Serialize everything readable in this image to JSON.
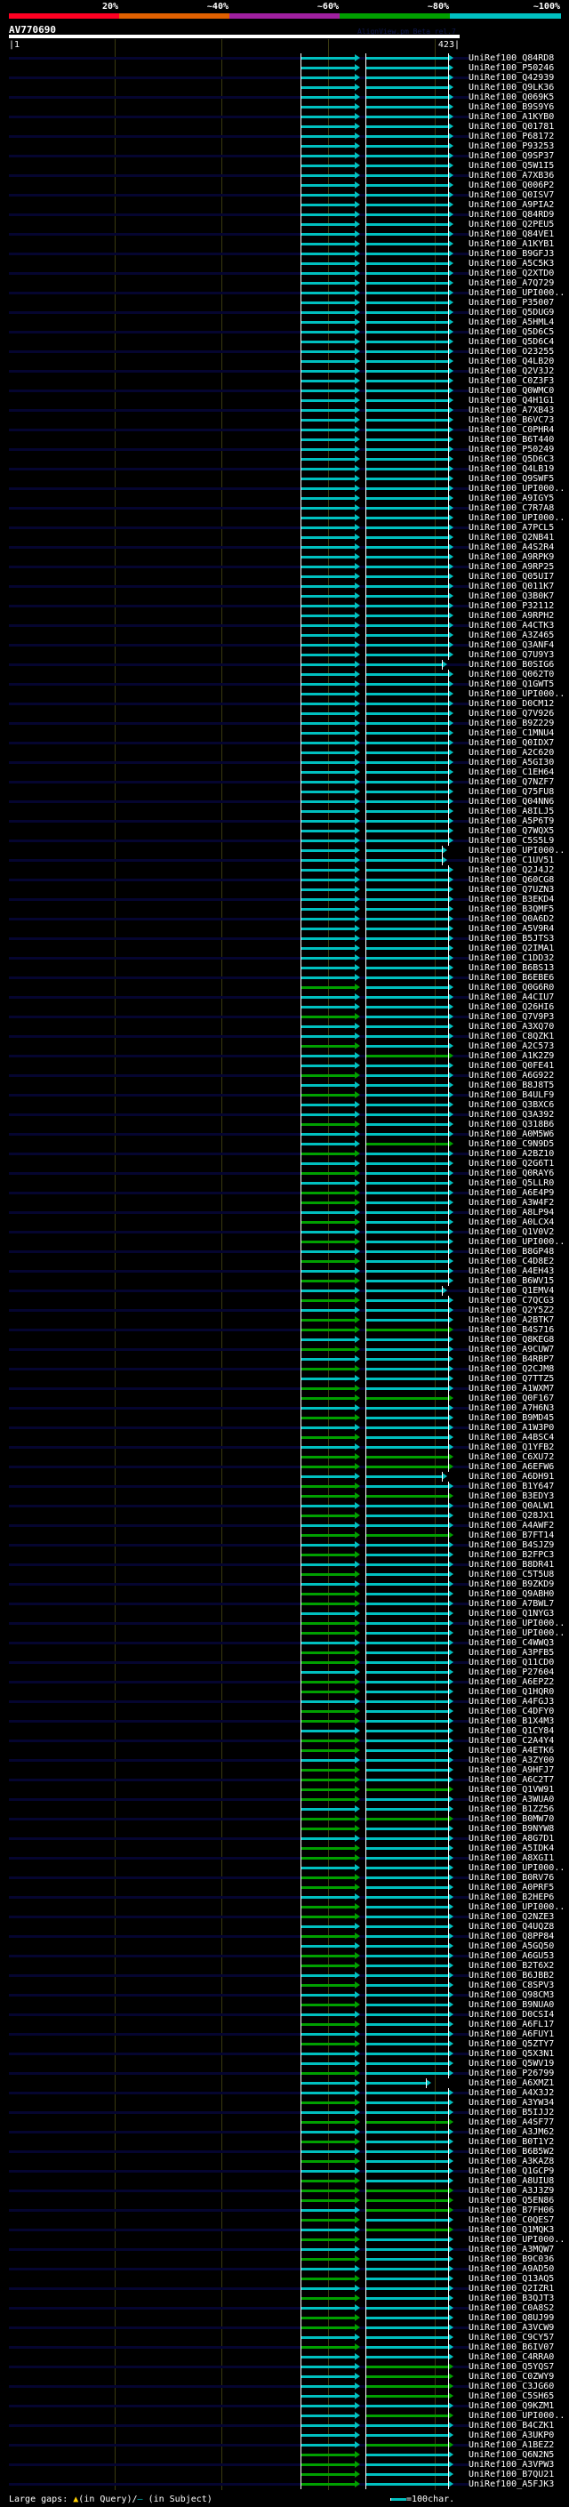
{
  "scale": {
    "labels": [
      "20%",
      "~40%",
      "~60%",
      "~80%",
      "~100%"
    ],
    "colors": [
      "#ff0022",
      "#e06000",
      "#a020a0",
      "#00a000",
      "#00c0c0"
    ]
  },
  "header": {
    "query_id": "AV770690",
    "credit": "AlignView.pm Beta rel.7",
    "start": "|1",
    "end": "423|"
  },
  "colors": {
    "cyan": "#00c0c0",
    "green": "#00a000",
    "query_line": "#050530"
  },
  "rows": [
    {
      "id": "UniRef100_Q84RD8",
      "s": "cc"
    },
    {
      "id": "UniRef100_P50246",
      "s": "cc"
    },
    {
      "id": "UniRef100_Q42939",
      "s": "cc"
    },
    {
      "id": "UniRef100_Q9LK36",
      "s": "cc"
    },
    {
      "id": "UniRef100_Q069K5",
      "s": "cc"
    },
    {
      "id": "UniRef100_B9S9Y6",
      "s": "cc"
    },
    {
      "id": "UniRef100_A1KYB0",
      "s": "cc"
    },
    {
      "id": "UniRef100_Q01781",
      "s": "cc"
    },
    {
      "id": "UniRef100_P68172",
      "s": "cc"
    },
    {
      "id": "UniRef100_P93253",
      "s": "cc"
    },
    {
      "id": "UniRef100_Q9SP37",
      "s": "cc"
    },
    {
      "id": "UniRef100_Q5W1I5",
      "s": "cc"
    },
    {
      "id": "UniRef100_A7XB36",
      "s": "cc"
    },
    {
      "id": "UniRef100_Q006P2",
      "s": "cc"
    },
    {
      "id": "UniRef100_Q0ISV7",
      "s": "cc"
    },
    {
      "id": "UniRef100_A9PIA2",
      "s": "cc"
    },
    {
      "id": "UniRef100_Q84RD9",
      "s": "cc"
    },
    {
      "id": "UniRef100_Q2PEU5",
      "s": "cc"
    },
    {
      "id": "UniRef100_Q84VE1",
      "s": "cc"
    },
    {
      "id": "UniRef100_A1KYB1",
      "s": "cc"
    },
    {
      "id": "UniRef100_B9GFJ3",
      "s": "cc"
    },
    {
      "id": "UniRef100_A5C5K3",
      "s": "cc"
    },
    {
      "id": "UniRef100_Q2XTD0",
      "s": "cc"
    },
    {
      "id": "UniRef100_A7Q729",
      "s": "cc"
    },
    {
      "id": "UniRef100_UPI000..",
      "s": "cc"
    },
    {
      "id": "UniRef100_P35007",
      "s": "cc"
    },
    {
      "id": "UniRef100_Q5DUG9",
      "s": "cc"
    },
    {
      "id": "UniRef100_A5HML4",
      "s": "cc"
    },
    {
      "id": "UniRef100_Q5D6C5",
      "s": "cc"
    },
    {
      "id": "UniRef100_Q5D6C4",
      "s": "cc"
    },
    {
      "id": "UniRef100_O23255",
      "s": "cc"
    },
    {
      "id": "UniRef100_Q4LB20",
      "s": "cc"
    },
    {
      "id": "UniRef100_Q2V3J2",
      "s": "cc"
    },
    {
      "id": "UniRef100_C0Z3F3",
      "s": "cc"
    },
    {
      "id": "UniRef100_Q0WMC0",
      "s": "cc"
    },
    {
      "id": "UniRef100_Q4H1G1",
      "s": "cc"
    },
    {
      "id": "UniRef100_A7XB43",
      "s": "cc"
    },
    {
      "id": "UniRef100_B6VC73",
      "s": "cc"
    },
    {
      "id": "UniRef100_C0PHR4",
      "s": "cc"
    },
    {
      "id": "UniRef100_B6T440",
      "s": "cc"
    },
    {
      "id": "UniRef100_P50249",
      "s": "cc"
    },
    {
      "id": "UniRef100_Q5D6C3",
      "s": "cc"
    },
    {
      "id": "UniRef100_Q4LB19",
      "s": "cc"
    },
    {
      "id": "UniRef100_Q9SWF5",
      "s": "cc"
    },
    {
      "id": "UniRef100_UPI000..",
      "s": "cc"
    },
    {
      "id": "UniRef100_A9IGY5",
      "s": "cc"
    },
    {
      "id": "UniRef100_C7R7A8",
      "s": "cc"
    },
    {
      "id": "UniRef100_UPI000..",
      "s": "cc"
    },
    {
      "id": "UniRef100_A7PCL5",
      "s": "cc"
    },
    {
      "id": "UniRef100_Q2NB41",
      "s": "cc"
    },
    {
      "id": "UniRef100_A4S2R4",
      "s": "cc"
    },
    {
      "id": "UniRef100_A9RPK9",
      "s": "cc"
    },
    {
      "id": "UniRef100_A9RP25",
      "s": "cc"
    },
    {
      "id": "UniRef100_Q05UI7",
      "s": "cc"
    },
    {
      "id": "UniRef100_Q011K7",
      "s": "cc"
    },
    {
      "id": "UniRef100_Q3B0K7",
      "s": "cc"
    },
    {
      "id": "UniRef100_P32112",
      "s": "cc"
    },
    {
      "id": "UniRef100_A9RPH2",
      "s": "cc"
    },
    {
      "id": "UniRef100_A4CTK3",
      "s": "cc"
    },
    {
      "id": "UniRef100_A3Z465",
      "s": "cc"
    },
    {
      "id": "UniRef100_Q3ANF4",
      "s": "cc"
    },
    {
      "id": "UniRef100_Q7U9Y3",
      "s": "cc"
    },
    {
      "id": "UniRef100_B0SIG6",
      "s": "cc",
      "short": 1
    },
    {
      "id": "UniRef100_Q062T0",
      "s": "cc"
    },
    {
      "id": "UniRef100_Q1GWT5",
      "s": "cc"
    },
    {
      "id": "UniRef100_UPI000..",
      "s": "cc"
    },
    {
      "id": "UniRef100_D0CM12",
      "s": "cc"
    },
    {
      "id": "UniRef100_Q7V926",
      "s": "cc"
    },
    {
      "id": "UniRef100_B9Z229",
      "s": "cc"
    },
    {
      "id": "UniRef100_C1MNU4",
      "s": "cc"
    },
    {
      "id": "UniRef100_Q0IDX7",
      "s": "cc"
    },
    {
      "id": "UniRef100_A2C620",
      "s": "cc"
    },
    {
      "id": "UniRef100_A5GI30",
      "s": "cc"
    },
    {
      "id": "UniRef100_C1EH64",
      "s": "cc"
    },
    {
      "id": "UniRef100_Q7NZF7",
      "s": "cc"
    },
    {
      "id": "UniRef100_Q75FU8",
      "s": "cc"
    },
    {
      "id": "UniRef100_Q04NN6",
      "s": "cc"
    },
    {
      "id": "UniRef100_A8ILJ5",
      "s": "cc"
    },
    {
      "id": "UniRef100_A5P6T9",
      "s": "cc"
    },
    {
      "id": "UniRef100_Q7WQX5",
      "s": "cc"
    },
    {
      "id": "UniRef100_C5S5L9",
      "s": "cc"
    },
    {
      "id": "UniRef100_UPI000..",
      "s": "cc",
      "short": 1
    },
    {
      "id": "UniRef100_C1UV51",
      "s": "cc",
      "short": 1
    },
    {
      "id": "UniRef100_Q2J4J2",
      "s": "cc"
    },
    {
      "id": "UniRef100_Q60CG8",
      "s": "cc"
    },
    {
      "id": "UniRef100_Q7UZN3",
      "s": "cc"
    },
    {
      "id": "UniRef100_B3EKD4",
      "s": "cc"
    },
    {
      "id": "UniRef100_B3QMF5",
      "s": "cc"
    },
    {
      "id": "UniRef100_Q0A6D2",
      "s": "cc"
    },
    {
      "id": "UniRef100_A5V9R4",
      "s": "cc"
    },
    {
      "id": "UniRef100_B5JTS3",
      "s": "cc"
    },
    {
      "id": "UniRef100_Q2IMA1",
      "s": "cc"
    },
    {
      "id": "UniRef100_C1DD32",
      "s": "cc"
    },
    {
      "id": "UniRef100_B6BS13",
      "s": "cc"
    },
    {
      "id": "UniRef100_B6EBE6",
      "s": "cc"
    },
    {
      "id": "UniRef100_Q0G6R0",
      "s": "gc"
    },
    {
      "id": "UniRef100_A4CIU7",
      "s": "cc"
    },
    {
      "id": "UniRef100_Q26HI6",
      "s": "cc"
    },
    {
      "id": "UniRef100_Q7V9P3",
      "s": "gc"
    },
    {
      "id": "UniRef100_A3XQ70",
      "s": "cc"
    },
    {
      "id": "UniRef100_C8QZK1",
      "s": "cc"
    },
    {
      "id": "UniRef100_A2C573",
      "s": "gc"
    },
    {
      "id": "UniRef100_A1K2Z9",
      "s": "cg"
    },
    {
      "id": "UniRef100_Q0FE41",
      "s": "cc"
    },
    {
      "id": "UniRef100_A6G922",
      "s": "gc"
    },
    {
      "id": "UniRef100_B8J8T5",
      "s": "cc"
    },
    {
      "id": "UniRef100_B4ULF9",
      "s": "gc"
    },
    {
      "id": "UniRef100_Q3BXC6",
      "s": "cc"
    },
    {
      "id": "UniRef100_Q3A392",
      "s": "cc"
    },
    {
      "id": "UniRef100_Q318B6",
      "s": "gc"
    },
    {
      "id": "UniRef100_A0M5W6",
      "s": "cc"
    },
    {
      "id": "UniRef100_C9N9D5",
      "s": "cg"
    },
    {
      "id": "UniRef100_A2BZ10",
      "s": "gc"
    },
    {
      "id": "UniRef100_Q2G6T1",
      "s": "cc"
    },
    {
      "id": "UniRef100_Q0RAY6",
      "s": "gc"
    },
    {
      "id": "UniRef100_Q5LLR0",
      "s": "cc"
    },
    {
      "id": "UniRef100_A6E4P9",
      "s": "gc"
    },
    {
      "id": "UniRef100_A3W4F2",
      "s": "gc"
    },
    {
      "id": "UniRef100_A8LP94",
      "s": "cc"
    },
    {
      "id": "UniRef100_A0LCX4",
      "s": "gc"
    },
    {
      "id": "UniRef100_Q1V0V2",
      "s": "cc"
    },
    {
      "id": "UniRef100_UPI000..",
      "s": "gc"
    },
    {
      "id": "UniRef100_B8GP48",
      "s": "cc"
    },
    {
      "id": "UniRef100_C4D8E2",
      "s": "gc"
    },
    {
      "id": "UniRef100_A4EH43",
      "s": "cc"
    },
    {
      "id": "UniRef100_B6WV15",
      "s": "gc"
    },
    {
      "id": "UniRef100_Q1EMV4",
      "s": "cc",
      "short": 1
    },
    {
      "id": "UniRef100_C7QCG3",
      "s": "gc"
    },
    {
      "id": "UniRef100_Q2Y5Z2",
      "s": "cc"
    },
    {
      "id": "UniRef100_A2BTK7",
      "s": "gc"
    },
    {
      "id": "UniRef100_B4S716",
      "s": "gg"
    },
    {
      "id": "UniRef100_Q8KEG8",
      "s": "cc"
    },
    {
      "id": "UniRef100_A9CUW7",
      "s": "gc"
    },
    {
      "id": "UniRef100_B4RBP7",
      "s": "cc"
    },
    {
      "id": "UniRef100_Q2CJM8",
      "s": "gc"
    },
    {
      "id": "UniRef100_Q7TTZ5",
      "s": "cc"
    },
    {
      "id": "UniRef100_A1WXM7",
      "s": "gc"
    },
    {
      "id": "UniRef100_Q0F167",
      "s": "gg"
    },
    {
      "id": "UniRef100_A7H6N3",
      "s": "cc"
    },
    {
      "id": "UniRef100_B9MD45",
      "s": "gc"
    },
    {
      "id": "UniRef100_A1W3P0",
      "s": "cc"
    },
    {
      "id": "UniRef100_A4BSC4",
      "s": "gc"
    },
    {
      "id": "UniRef100_Q1YFB2",
      "s": "cc"
    },
    {
      "id": "UniRef100_C6XU72",
      "s": "gg"
    },
    {
      "id": "UniRef100_A6EFW6",
      "s": "gg"
    },
    {
      "id": "UniRef100_A6DH91",
      "s": "cc",
      "short": 1
    },
    {
      "id": "UniRef100_B1Y647",
      "s": "gc"
    },
    {
      "id": "UniRef100_B3EDY3",
      "s": "gg"
    },
    {
      "id": "UniRef100_Q0ALW1",
      "s": "cc"
    },
    {
      "id": "UniRef100_Q28JX1",
      "s": "gc"
    },
    {
      "id": "UniRef100_A4AWF2",
      "s": "cc"
    },
    {
      "id": "UniRef100_B7FT14",
      "s": "gg"
    },
    {
      "id": "UniRef100_B4SJZ9",
      "s": "cc"
    },
    {
      "id": "UniRef100_B2FPC3",
      "s": "gc"
    },
    {
      "id": "UniRef100_B8DR41",
      "s": "cc"
    },
    {
      "id": "UniRef100_C5T5U8",
      "s": "gc"
    },
    {
      "id": "UniRef100_B9ZKD9",
      "s": "cc"
    },
    {
      "id": "UniRef100_Q9ABH0",
      "s": "gc"
    },
    {
      "id": "UniRef100_A7BWL7",
      "s": "gc"
    },
    {
      "id": "UniRef100_Q1NYG3",
      "s": "cc"
    },
    {
      "id": "UniRef100_UPI000..",
      "s": "gc"
    },
    {
      "id": "UniRef100_UPI000..",
      "s": "gc"
    },
    {
      "id": "UniRef100_C4WWQ3",
      "s": "cc"
    },
    {
      "id": "UniRef100_A3PFB5",
      "s": "gc"
    },
    {
      "id": "UniRef100_Q11CD0",
      "s": "gc"
    },
    {
      "id": "UniRef100_P27604",
      "s": "cc"
    },
    {
      "id": "UniRef100_A6EPZ2",
      "s": "gc"
    },
    {
      "id": "UniRef100_Q1HQR0",
      "s": "gc"
    },
    {
      "id": "UniRef100_A4FGJ3",
      "s": "cc"
    },
    {
      "id": "UniRef100_C4DFY0",
      "s": "gc"
    },
    {
      "id": "UniRef100_B1X4M3",
      "s": "gc"
    },
    {
      "id": "UniRef100_Q1CY84",
      "s": "cc"
    },
    {
      "id": "UniRef100_C2A4Y4",
      "s": "gc"
    },
    {
      "id": "UniRef100_A4ETK6",
      "s": "gc"
    },
    {
      "id": "UniRef100_A3ZY00",
      "s": "cc"
    },
    {
      "id": "UniRef100_A9HFJ7",
      "s": "gc"
    },
    {
      "id": "UniRef100_A6C2T7",
      "s": "gc"
    },
    {
      "id": "UniRef100_Q1VW91",
      "s": "gg"
    },
    {
      "id": "UniRef100_A3WUA0",
      "s": "gc"
    },
    {
      "id": "UniRef100_B1ZZ56",
      "s": "cc"
    },
    {
      "id": "UniRef100_B0MW70",
      "s": "gg"
    },
    {
      "id": "UniRef100_B9NYW8",
      "s": "gc"
    },
    {
      "id": "UniRef100_A8G7D1",
      "s": "cc"
    },
    {
      "id": "UniRef100_A5IDK4",
      "s": "gc"
    },
    {
      "id": "UniRef100_A8XGI1",
      "s": "gc"
    },
    {
      "id": "UniRef100_UPI000..",
      "s": "cc"
    },
    {
      "id": "UniRef100_B0RV76",
      "s": "gc"
    },
    {
      "id": "UniRef100_A0PRF5",
      "s": "gc"
    },
    {
      "id": "UniRef100_B2HEP6",
      "s": "cc"
    },
    {
      "id": "UniRef100_UPI000..",
      "s": "gc"
    },
    {
      "id": "UniRef100_Q2NZE3",
      "s": "gc"
    },
    {
      "id": "UniRef100_Q4UQZ8",
      "s": "cc"
    },
    {
      "id": "UniRef100_Q8PP84",
      "s": "gc"
    },
    {
      "id": "UniRef100_A5GQ50",
      "s": "cc"
    },
    {
      "id": "UniRef100_A6GU53",
      "s": "gc"
    },
    {
      "id": "UniRef100_B2T6X2",
      "s": "gc"
    },
    {
      "id": "UniRef100_B6JBB2",
      "s": "cc"
    },
    {
      "id": "UniRef100_C8SPV3",
      "s": "gc"
    },
    {
      "id": "UniRef100_Q98CM3",
      "s": "cc"
    },
    {
      "id": "UniRef100_B9NUA0",
      "s": "gc"
    },
    {
      "id": "UniRef100_D0CSI4",
      "s": "cc"
    },
    {
      "id": "UniRef100_A6FL17",
      "s": "gc"
    },
    {
      "id": "UniRef100_A6FUY1",
      "s": "cc"
    },
    {
      "id": "UniRef100_Q5ZTY7",
      "s": "gc"
    },
    {
      "id": "UniRef100_Q5X3N1",
      "s": "cc"
    },
    {
      "id": "UniRef100_Q5WV19",
      "s": "cc"
    },
    {
      "id": "UniRef100_P26799",
      "s": "gc"
    },
    {
      "id": "UniRef100_A6XMZ1",
      "s": "cc",
      "short": 2
    },
    {
      "id": "UniRef100_A4X3J2",
      "s": "cc"
    },
    {
      "id": "UniRef100_A3YW34",
      "s": "gc"
    },
    {
      "id": "UniRef100_B5IJJ2",
      "s": "cc"
    },
    {
      "id": "UniRef100_A4SF77",
      "s": "gg"
    },
    {
      "id": "UniRef100_A3JM62",
      "s": "cc"
    },
    {
      "id": "UniRef100_B0T1Y2",
      "s": "gc"
    },
    {
      "id": "UniRef100_B6B5W2",
      "s": "cc"
    },
    {
      "id": "UniRef100_A3KAZ8",
      "s": "gc"
    },
    {
      "id": "UniRef100_Q1GCP9",
      "s": "cc"
    },
    {
      "id": "UniRef100_A8UIU8",
      "s": "gc"
    },
    {
      "id": "UniRef100_A3J3Z9",
      "s": "gg"
    },
    {
      "id": "UniRef100_Q5EN86",
      "s": "gg"
    },
    {
      "id": "UniRef100_B7FH06",
      "s": "cg"
    },
    {
      "id": "UniRef100_C0QES7",
      "s": "gc"
    },
    {
      "id": "UniRef100_Q1MQK3",
      "s": "cg"
    },
    {
      "id": "UniRef100_UPI000..",
      "s": "gc"
    },
    {
      "id": "UniRef100_A3MQW7",
      "s": "cc"
    },
    {
      "id": "UniRef100_B9C036",
      "s": "gc"
    },
    {
      "id": "UniRef100_A9AD50",
      "s": "cc"
    },
    {
      "id": "UniRef100_Q13AQ5",
      "s": "gc"
    },
    {
      "id": "UniRef100_Q2IZR1",
      "s": "cc"
    },
    {
      "id": "UniRef100_B3QJT3",
      "s": "gc"
    },
    {
      "id": "UniRef100_C0A8S2",
      "s": "cc"
    },
    {
      "id": "UniRef100_Q8UJ99",
      "s": "gc"
    },
    {
      "id": "UniRef100_A3VCW9",
      "s": "gc"
    },
    {
      "id": "UniRef100_C9CY57",
      "s": "cc"
    },
    {
      "id": "UniRef100_B6IV07",
      "s": "gc"
    },
    {
      "id": "UniRef100_C4RRA0",
      "s": "cc"
    },
    {
      "id": "UniRef100_Q5YQS7",
      "s": "cg"
    },
    {
      "id": "UniRef100_C0ZWY9",
      "s": "cg"
    },
    {
      "id": "UniRef100_C3JG60",
      "s": "cg"
    },
    {
      "id": "UniRef100_C5SH65",
      "s": "cg"
    },
    {
      "id": "UniRef100_Q9KZM1",
      "s": "cc"
    },
    {
      "id": "UniRef100_UPI000..",
      "s": "cg"
    },
    {
      "id": "UniRef100_B4CZK1",
      "s": "cc"
    },
    {
      "id": "UniRef100_A3UKP0",
      "s": "cc"
    },
    {
      "id": "UniRef100_A1BEZ2",
      "s": "cg"
    },
    {
      "id": "UniRef100_Q6N2N5",
      "s": "gc"
    },
    {
      "id": "UniRef100_A3VPW3",
      "s": "gc"
    },
    {
      "id": "UniRef100_B7QU21",
      "s": "gc"
    },
    {
      "id": "UniRef100_A5FJK3",
      "s": "gc"
    }
  ],
  "footer": {
    "large_gaps_label": "Large gaps:",
    "query_gap_symbol": "▲",
    "query_gap_text": "(in Query)/",
    "subject_gap_symbol": "–",
    "subject_gap_text": " (in Subject)",
    "scale_legend": "=100char."
  }
}
